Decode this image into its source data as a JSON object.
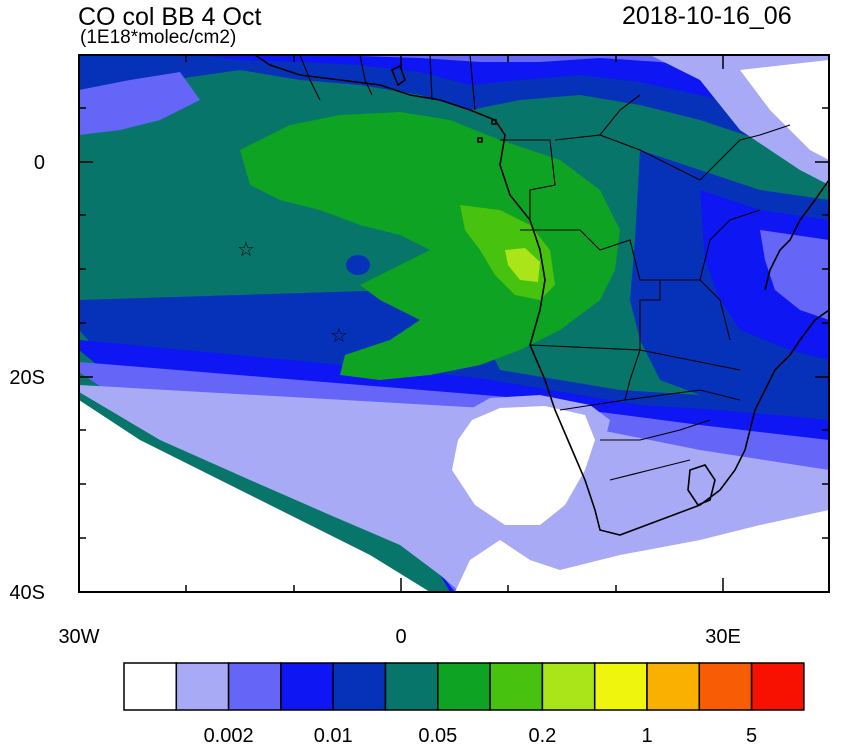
{
  "header": {
    "title": "CO col BB 4 Oct",
    "units": "(1E18*molec/cm2)",
    "timestamp": "2018-10-16_06"
  },
  "axes": {
    "y_ticks": [
      "0",
      "20S",
      "40S"
    ],
    "x_ticks": [
      "30W",
      "0",
      "30E"
    ]
  },
  "markers": {
    "star_symbol": "☆",
    "stars": [
      {
        "lon": -14,
        "lat": -8
      },
      {
        "lon": -5.5,
        "lat": -16
      }
    ]
  },
  "colorbar": {
    "colors": [
      "#ffffff",
      "#a9aaf5",
      "#6565f8",
      "#0d16f3",
      "#0532b8",
      "#08756a",
      "#0ea322",
      "#46c20f",
      "#aae51a",
      "#f0f50e",
      "#fab000",
      "#f85c05",
      "#f81000"
    ],
    "labels": [
      "0.002",
      "0.01",
      "0.05",
      "0.2",
      "1",
      "5"
    ]
  },
  "colors": {
    "ocean_bg": "#08756a",
    "land_line": "#000000"
  }
}
